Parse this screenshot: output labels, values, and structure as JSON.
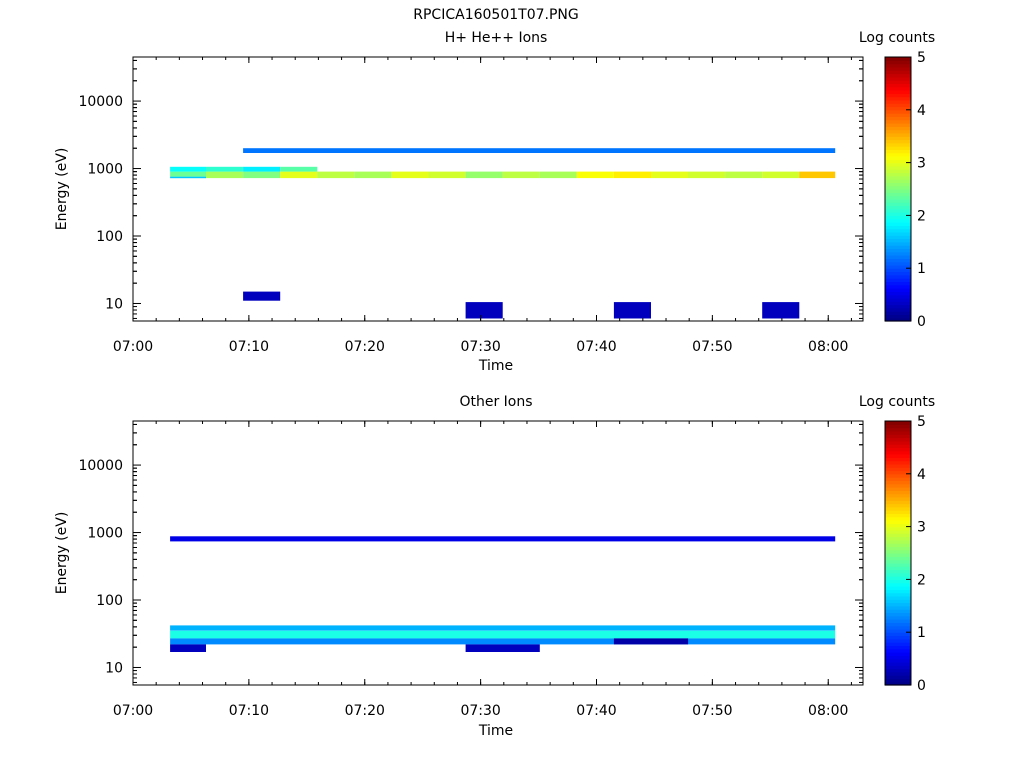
{
  "figure_title": "RPCICA160501T07.PNG",
  "colors": {
    "background": "#ffffff",
    "axis": "#000000",
    "colormap": "jet"
  },
  "chart_data": [
    {
      "type": "heatmap",
      "title": "H+ He++ Ions",
      "xlabel": "Time",
      "ylabel": "Energy (eV)",
      "y_scale": "log",
      "ylim": [
        5.5,
        45000
      ],
      "xlim_minutes": [
        0,
        63
      ],
      "x_ticks": [
        {
          "t": 0,
          "label": "07:00"
        },
        {
          "t": 10,
          "label": "07:10"
        },
        {
          "t": 20,
          "label": "07:20"
        },
        {
          "t": 30,
          "label": "07:30"
        },
        {
          "t": 40,
          "label": "07:40"
        },
        {
          "t": 50,
          "label": "07:50"
        },
        {
          "t": 60,
          "label": "08:00"
        }
      ],
      "y_ticks": [
        {
          "v": 10,
          "label": "10"
        },
        {
          "v": 100,
          "label": "100"
        },
        {
          "v": 1000,
          "label": "1000"
        },
        {
          "v": 10000,
          "label": "10000"
        }
      ],
      "colorbar": {
        "title": "Log counts",
        "range": [
          0,
          5
        ],
        "ticks": [
          "0",
          "1",
          "2",
          "3",
          "4",
          "5"
        ]
      },
      "time_bins_start": [
        "07:03",
        "07:06",
        "07:09",
        "07:12",
        "07:16",
        "07:19",
        "07:22",
        "07:25",
        "07:28",
        "07:32",
        "07:35",
        "07:38",
        "07:41",
        "07:44",
        "07:48",
        "07:51",
        "07:54",
        "07:57"
      ],
      "data_description": "log10 counts per (time bin, energy); all sparse low-count bins not listed individually",
      "cells": [
        {
          "t0": 3.2,
          "t1": 6.3,
          "e0": 720,
          "e1": 760,
          "v": 1.6
        },
        {
          "t0": 3.2,
          "t1": 6.3,
          "e0": 760,
          "e1": 900,
          "v": 2.4
        },
        {
          "t0": 3.2,
          "t1": 6.3,
          "e0": 900,
          "e1": 1060,
          "v": 1.9
        },
        {
          "t0": 6.3,
          "t1": 9.5,
          "e0": 720,
          "e1": 900,
          "v": 2.7
        },
        {
          "t0": 6.3,
          "t1": 9.5,
          "e0": 900,
          "e1": 1060,
          "v": 2.1
        },
        {
          "t0": 9.5,
          "t1": 12.7,
          "e0": 720,
          "e1": 900,
          "v": 2.5
        },
        {
          "t0": 9.5,
          "t1": 12.7,
          "e0": 900,
          "e1": 1060,
          "v": 1.8
        },
        {
          "t0": 12.7,
          "t1": 15.9,
          "e0": 720,
          "e1": 900,
          "v": 3.0
        },
        {
          "t0": 12.7,
          "t1": 15.9,
          "e0": 900,
          "e1": 1060,
          "v": 2.3
        },
        {
          "t0": 15.9,
          "t1": 19.1,
          "e0": 720,
          "e1": 900,
          "v": 2.8
        },
        {
          "t0": 19.1,
          "t1": 22.3,
          "e0": 720,
          "e1": 900,
          "v": 2.7
        },
        {
          "t0": 22.3,
          "t1": 25.5,
          "e0": 720,
          "e1": 900,
          "v": 3.0
        },
        {
          "t0": 25.5,
          "t1": 28.7,
          "e0": 720,
          "e1": 900,
          "v": 2.9
        },
        {
          "t0": 28.7,
          "t1": 31.9,
          "e0": 720,
          "e1": 900,
          "v": 2.6
        },
        {
          "t0": 31.9,
          "t1": 35.1,
          "e0": 720,
          "e1": 900,
          "v": 2.8
        },
        {
          "t0": 35.1,
          "t1": 38.3,
          "e0": 720,
          "e1": 900,
          "v": 2.7
        },
        {
          "t0": 38.3,
          "t1": 41.5,
          "e0": 720,
          "e1": 900,
          "v": 3.1
        },
        {
          "t0": 41.5,
          "t1": 44.7,
          "e0": 720,
          "e1": 900,
          "v": 3.2
        },
        {
          "t0": 44.7,
          "t1": 47.9,
          "e0": 720,
          "e1": 900,
          "v": 3.0
        },
        {
          "t0": 47.9,
          "t1": 51.1,
          "e0": 720,
          "e1": 900,
          "v": 2.9
        },
        {
          "t0": 51.1,
          "t1": 54.3,
          "e0": 720,
          "e1": 900,
          "v": 2.8
        },
        {
          "t0": 54.3,
          "t1": 57.5,
          "e0": 720,
          "e1": 900,
          "v": 2.9
        },
        {
          "t0": 57.5,
          "t1": 60.6,
          "e0": 720,
          "e1": 900,
          "v": 3.4
        },
        {
          "t0": 9.5,
          "t1": 60.6,
          "e0": 1700,
          "e1": 2000,
          "v": 1.2
        },
        {
          "t0": 9.5,
          "t1": 12.7,
          "e0": 11,
          "e1": 15,
          "v": 0.3
        },
        {
          "t0": 28.7,
          "t1": 31.9,
          "e0": 6,
          "e1": 10.5,
          "v": 0.3
        },
        {
          "t0": 41.5,
          "t1": 44.7,
          "e0": 6,
          "e1": 10.5,
          "v": 0.3
        },
        {
          "t0": 54.3,
          "t1": 57.5,
          "e0": 6,
          "e1": 10.5,
          "v": 0.3
        }
      ]
    },
    {
      "type": "heatmap",
      "title": "Other Ions",
      "xlabel": "Time",
      "ylabel": "Energy (eV)",
      "y_scale": "log",
      "ylim": [
        5.5,
        45000
      ],
      "xlim_minutes": [
        0,
        63
      ],
      "x_ticks": [
        {
          "t": 0,
          "label": "07:00"
        },
        {
          "t": 10,
          "label": "07:10"
        },
        {
          "t": 20,
          "label": "07:20"
        },
        {
          "t": 30,
          "label": "07:30"
        },
        {
          "t": 40,
          "label": "07:40"
        },
        {
          "t": 50,
          "label": "07:50"
        },
        {
          "t": 60,
          "label": "08:00"
        }
      ],
      "y_ticks": [
        {
          "v": 10,
          "label": "10"
        },
        {
          "v": 100,
          "label": "100"
        },
        {
          "v": 1000,
          "label": "1000"
        },
        {
          "v": 10000,
          "label": "10000"
        }
      ],
      "colorbar": {
        "title": "Log counts",
        "range": [
          0,
          5
        ],
        "ticks": [
          "0",
          "1",
          "2",
          "3",
          "4",
          "5"
        ]
      },
      "cells": [
        {
          "t0": 3.2,
          "t1": 60.6,
          "e0": 35,
          "e1": 42,
          "v": 1.5
        },
        {
          "t0": 3.2,
          "t1": 60.6,
          "e0": 27,
          "e1": 35,
          "v": 2.0
        },
        {
          "t0": 3.2,
          "t1": 60.6,
          "e0": 22,
          "e1": 27,
          "v": 1.3
        },
        {
          "t0": 3.2,
          "t1": 6.3,
          "e0": 17,
          "e1": 22,
          "v": 0.3
        },
        {
          "t0": 28.7,
          "t1": 35.1,
          "e0": 17,
          "e1": 22,
          "v": 0.3
        },
        {
          "t0": 41.5,
          "t1": 47.9,
          "e0": 22,
          "e1": 27,
          "v": 0.2
        },
        {
          "t0": 3.2,
          "t1": 60.6,
          "e0": 740,
          "e1": 880,
          "v": 0.5
        }
      ]
    }
  ]
}
